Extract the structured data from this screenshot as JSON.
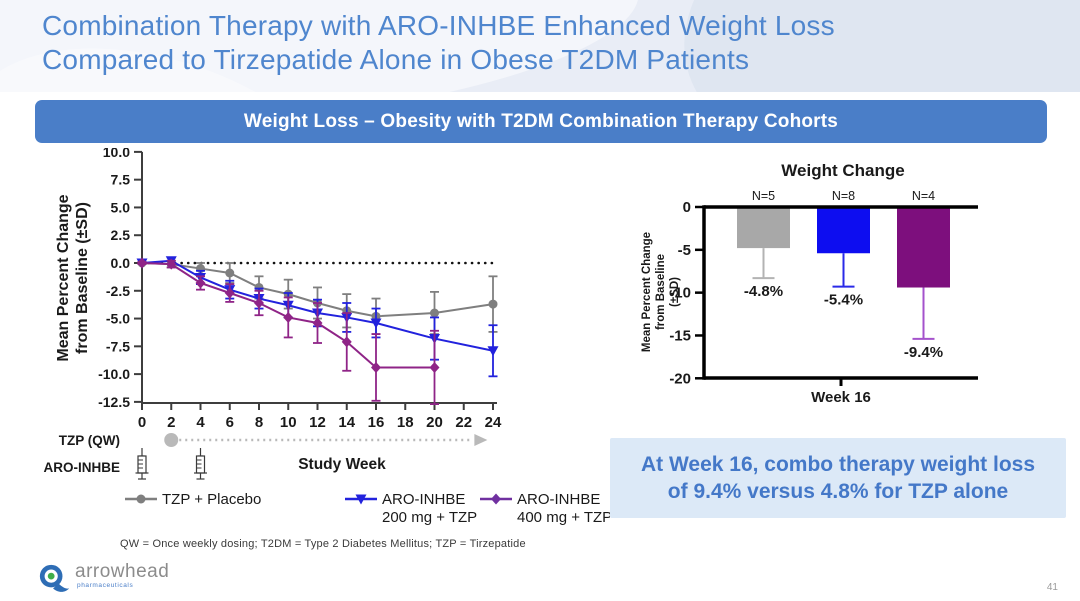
{
  "slide": {
    "title_line1": "Combination Therapy with ARO-INHBE Enhanced Weight Loss",
    "title_line2": "Compared to Tirzepatide Alone in Obese T2DM Patients",
    "banner": "Weight Loss – Obesity with T2DM Combination Therapy Cohorts",
    "callout_line1": "At Week 16, combo therapy weight loss",
    "callout_line2": "of 9.4% versus 4.8% for TZP alone",
    "footnote": "QW = Once weekly dosing; T2DM = Type 2 Diabetes Mellitus; TZP = Tirzepatide",
    "page_number": "41",
    "logo_name": "arrowhead",
    "logo_sub": "pharmaceuticals"
  },
  "colors": {
    "title_blue": "#4f86ce",
    "banner_blue": "#4a7ec8",
    "header_band": "#e9edf6",
    "callout_bg": "#dce9f7",
    "callout_text": "#4478c8",
    "line_axis": "#3d3d3d",
    "bar_axis": "#000000",
    "dosing_arrow": "#b9b9b9"
  },
  "chart_data": [
    {
      "type": "line",
      "title": "",
      "xlabel": "Study Week",
      "ylabel_lines": [
        "Mean Percent Change",
        "from Baseline (±SD)"
      ],
      "x_weeks": [
        0,
        2,
        4,
        6,
        8,
        10,
        12,
        14,
        16,
        20,
        24
      ],
      "xticks": [
        0,
        2,
        4,
        6,
        8,
        10,
        12,
        14,
        16,
        18,
        20,
        22,
        24
      ],
      "yticks": [
        10.0,
        7.5,
        5.0,
        2.5,
        0.0,
        -2.5,
        -5.0,
        -7.5,
        -10.0,
        -12.5
      ],
      "ylim": [
        -12.5,
        10.0
      ],
      "zero_reference_line": true,
      "series": [
        {
          "name": "TZP + Placebo",
          "legend_lines": [
            "TZP + Placebo"
          ],
          "color": "#7f7f7f",
          "marker": "circle",
          "values": [
            0,
            -0.1,
            -0.5,
            -0.9,
            -2.2,
            -2.8,
            -3.6,
            -4.3,
            -4.8,
            -4.5,
            -3.7
          ],
          "sd": [
            0.1,
            0.3,
            0.5,
            0.9,
            1.0,
            1.3,
            1.4,
            1.5,
            1.6,
            1.9,
            2.5
          ]
        },
        {
          "name": "ARO-INHBE 200 mg + TZP",
          "legend_lines": [
            "ARO-INHBE",
            "200 mg + TZP"
          ],
          "color": "#2222dd",
          "marker": "triangle-down",
          "values": [
            0,
            0.2,
            -1.3,
            -2.4,
            -3.2,
            -3.8,
            -4.5,
            -4.9,
            -5.4,
            -6.8,
            -7.9
          ],
          "sd": [
            0.1,
            0.3,
            0.6,
            0.8,
            0.9,
            1.1,
            1.2,
            1.3,
            1.3,
            1.9,
            2.3
          ]
        },
        {
          "name": "ARO-INHBE 400 mg + TZP",
          "legend_lines": [
            "ARO-INHBE",
            "400 mg + TZP"
          ],
          "color": "#8f2487",
          "legend_color": "#7030a0",
          "marker": "diamond",
          "values": [
            0,
            -0.1,
            -1.8,
            -2.7,
            -3.6,
            -4.9,
            -5.4,
            -7.1,
            -9.4,
            -9.4,
            null
          ],
          "sd": [
            0.1,
            0.3,
            0.6,
            0.8,
            1.1,
            1.8,
            1.8,
            2.6,
            3.0,
            3.3,
            null
          ]
        }
      ],
      "dosing": {
        "tzp_label": "TZP (QW)",
        "tzp_arrow_weeks": [
          2,
          23
        ],
        "aro_label": "ARO-INHBE",
        "syringe_weeks": [
          0,
          4
        ]
      }
    },
    {
      "type": "bar",
      "title": "Weight Change",
      "categories": [
        "N=5",
        "N=8",
        "N=4"
      ],
      "values": [
        -4.8,
        -5.4,
        -9.4
      ],
      "sd": [
        3.5,
        3.9,
        6.0
      ],
      "value_labels": [
        "-4.8%",
        "-5.4%",
        "-9.4%"
      ],
      "bar_colors": [
        "#a8a8a8",
        "#0d0df0",
        "#7d0f7d"
      ],
      "error_colors": [
        "#b3b3b3",
        "#2a2ae8",
        "#a452cc"
      ],
      "xlabel": "Week 16",
      "ylabel_lines": [
        "Mean Percent Change",
        "from Baseline",
        "(±SD)"
      ],
      "yticks": [
        0,
        -5,
        -10,
        -15,
        -20
      ],
      "ylim": [
        -20,
        0
      ]
    }
  ]
}
